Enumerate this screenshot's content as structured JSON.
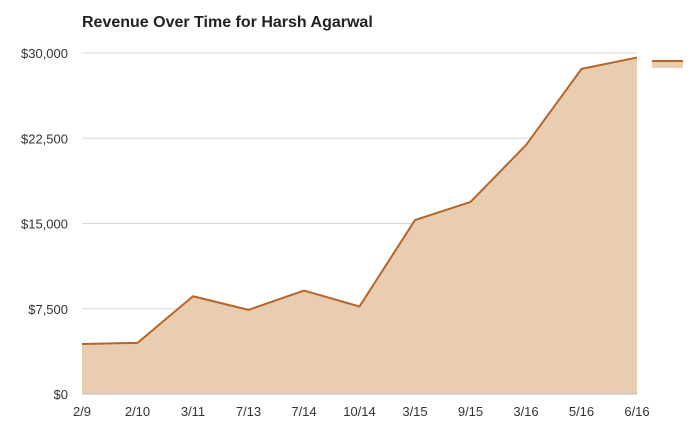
{
  "colors": {
    "line": "#b5652a",
    "fill": "#e9cdb0",
    "grid": "#d8d8d8",
    "text": "#222222"
  },
  "chart_data": {
    "type": "area",
    "title": "Revenue Over Time for Harsh Agarwal",
    "xlabel": "",
    "ylabel": "",
    "categories": [
      "2/9",
      "2/10",
      "3/11",
      "7/13",
      "7/14",
      "10/14",
      "3/15",
      "9/15",
      "3/16",
      "5/16",
      "6/16"
    ],
    "values": [
      4400,
      4500,
      8600,
      7400,
      9100,
      7700,
      15300,
      16900,
      21900,
      28600,
      29600
    ],
    "ylim": [
      0,
      30000
    ],
    "yticks": [
      0,
      7500,
      15000,
      22500,
      30000
    ],
    "ytick_labels": [
      "$0",
      "$7,500",
      "$15,000",
      "$22,500",
      "$30,000"
    ],
    "grid": true,
    "legend": "right"
  }
}
